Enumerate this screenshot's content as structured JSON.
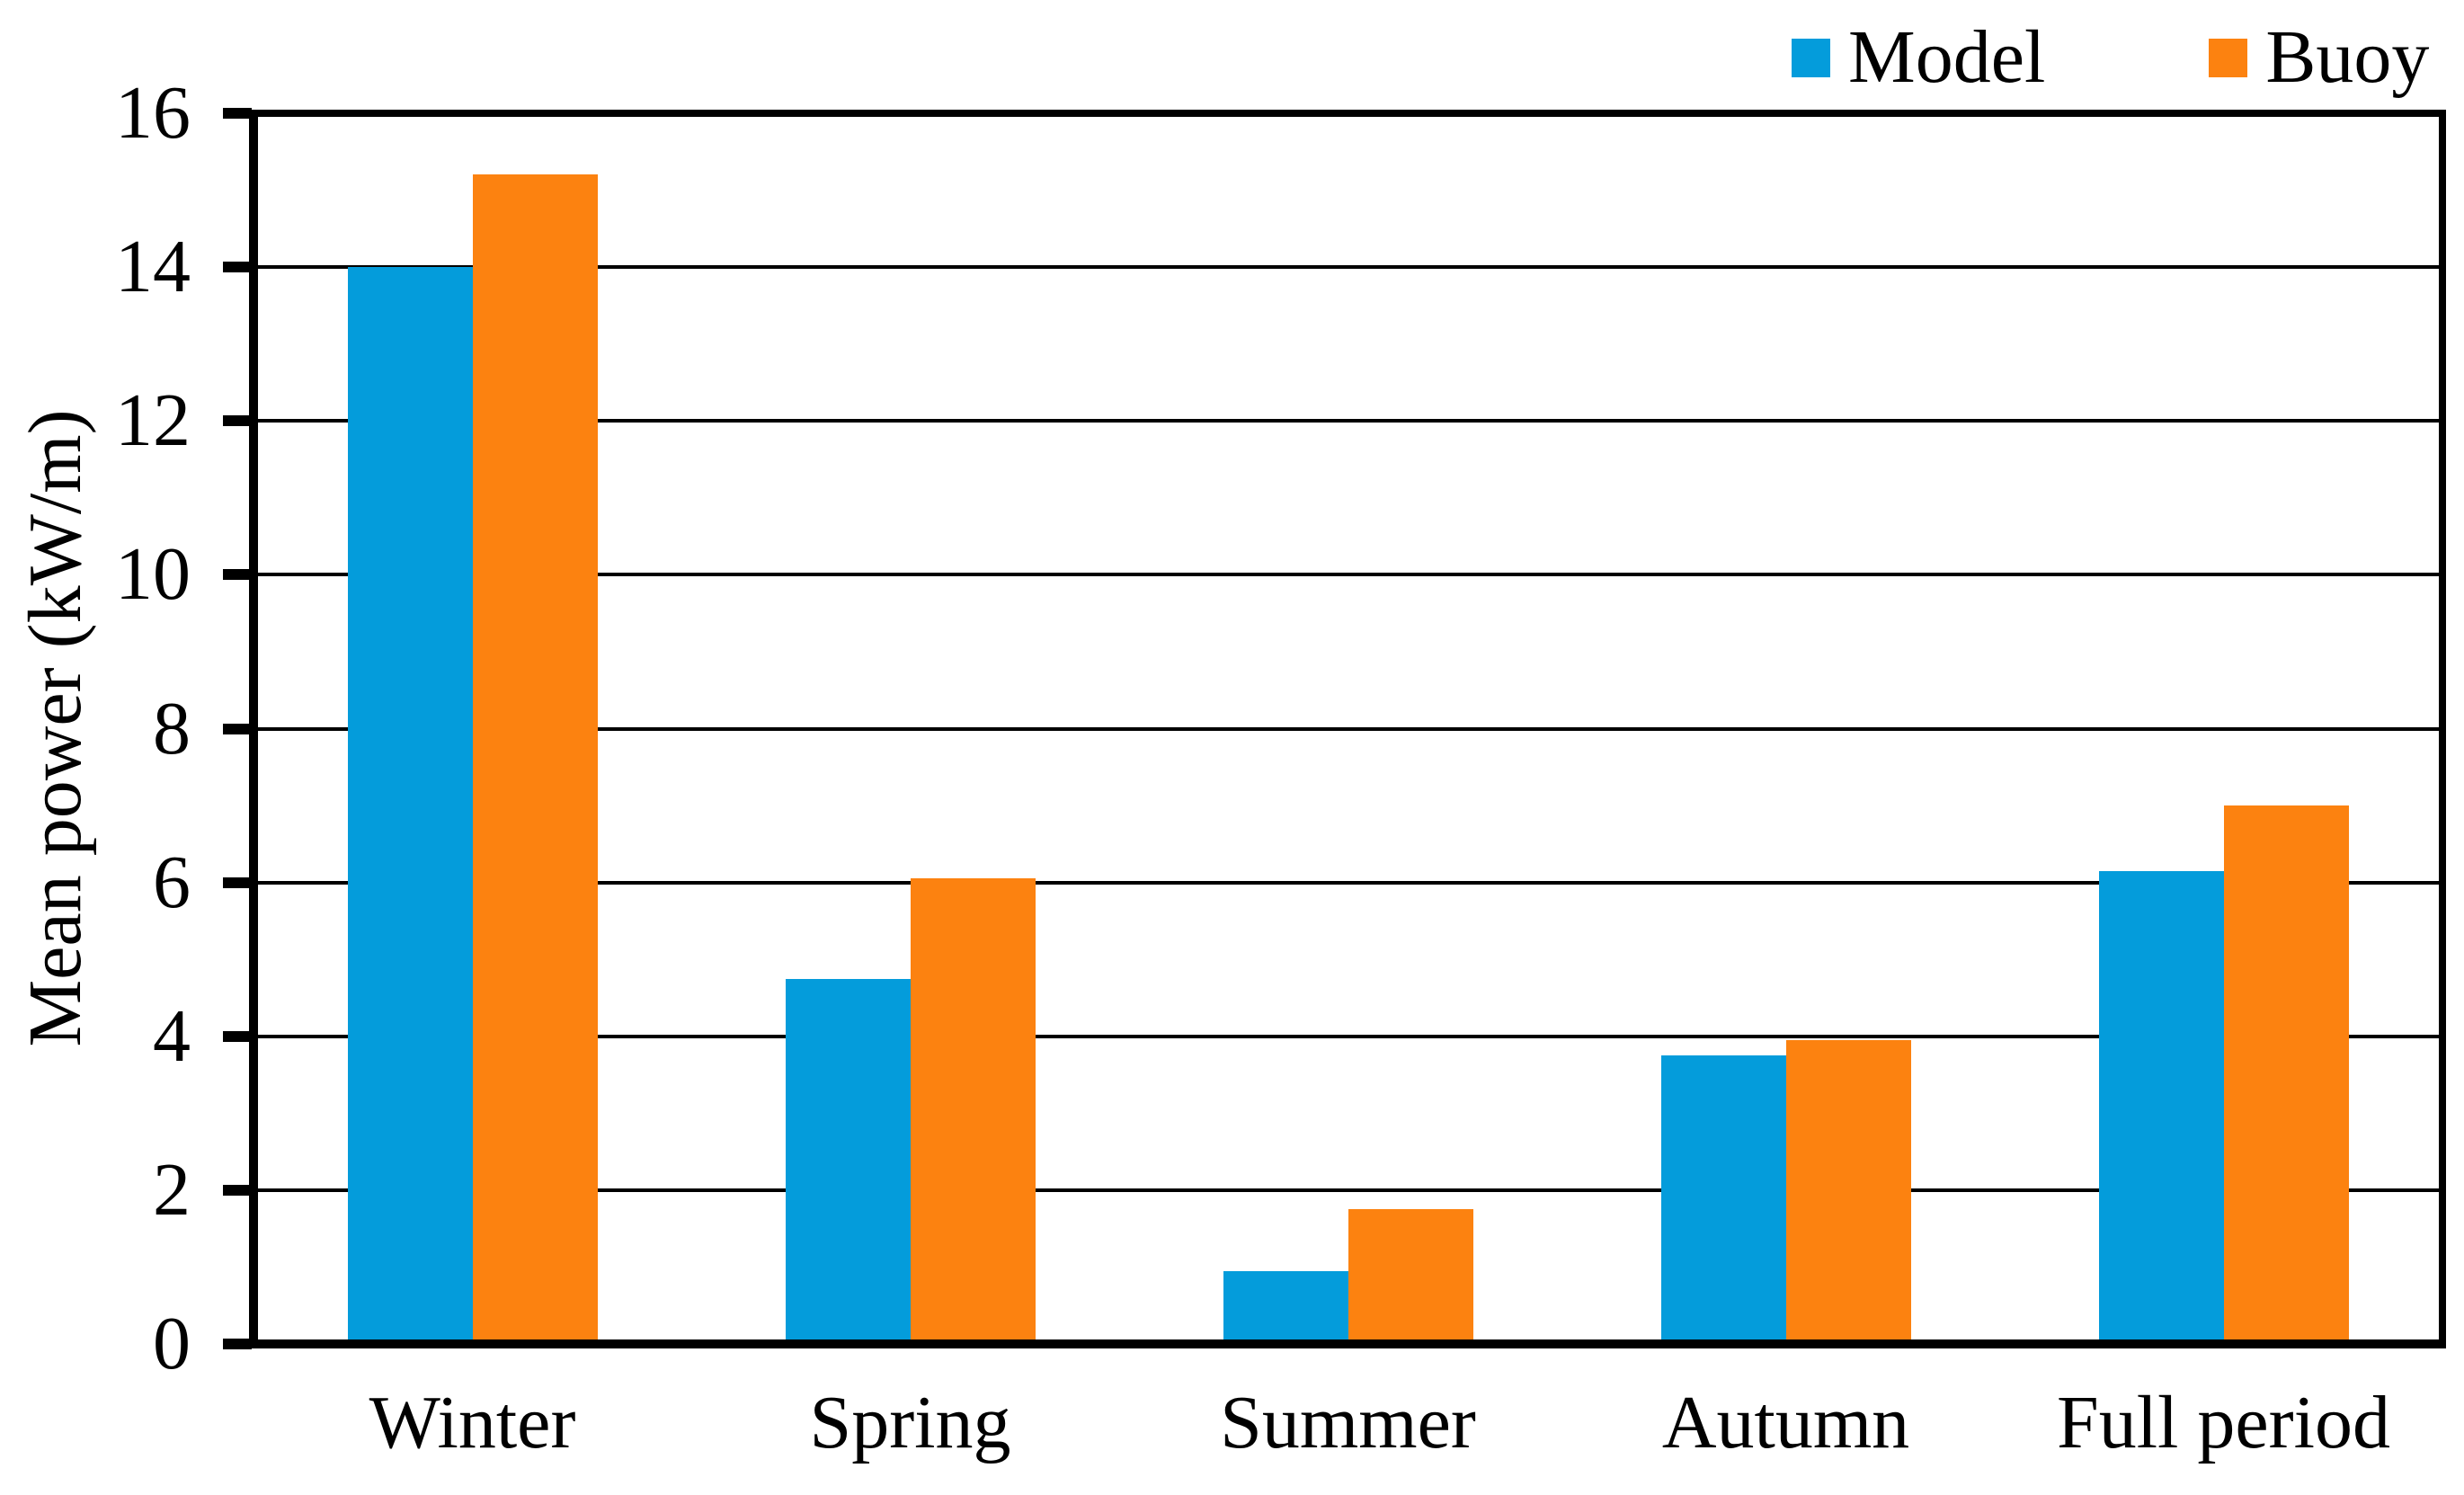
{
  "chart_data": {
    "type": "bar",
    "title": "",
    "categories": [
      "Winter",
      "Spring",
      "Summer",
      "Autumn",
      "Full period"
    ],
    "series": [
      {
        "name": "Model",
        "color": "#049cdb",
        "values": [
          14.0,
          4.75,
          0.95,
          3.75,
          6.15
        ]
      },
      {
        "name": "Buoy",
        "color": "#fc8210",
        "values": [
          15.2,
          6.05,
          1.75,
          3.95,
          7.0
        ]
      }
    ],
    "xlabel": "",
    "ylabel": "Mean power (kW/m)",
    "ylim": [
      0,
      16
    ],
    "yticks": [
      0,
      2,
      4,
      6,
      8,
      10,
      12,
      14,
      16
    ],
    "grid": "horizontal",
    "grid_color": "#000000",
    "axis_color": "#000000",
    "text_color": "#000000",
    "background_color": "#ffffff",
    "legend_position": "top-right",
    "legend_entries": [
      "Model",
      "Buoy"
    ]
  }
}
